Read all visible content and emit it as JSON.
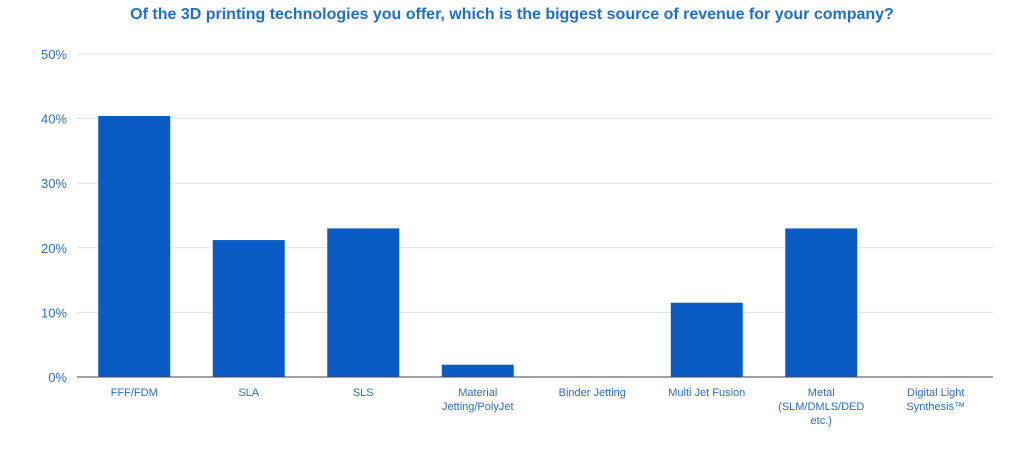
{
  "chart_data": {
    "type": "bar",
    "title": "Of the 3D printing technologies you offer, which is the biggest source of revenue for your company?",
    "xlabel": "",
    "ylabel": "",
    "categories": [
      "FFF/FDM",
      "SLA",
      "SLS",
      "Material Jetting/PolyJet",
      "Binder Jetting",
      "Multi Jet Fusion",
      "Metal (SLM/DMLS/DED etc.)",
      "Digital Light Synthesis™"
    ],
    "category_lines": [
      [
        "FFF/FDM"
      ],
      [
        "SLA"
      ],
      [
        "SLS"
      ],
      [
        "Material",
        "Jetting/PolyJet"
      ],
      [
        "Binder Jetting"
      ],
      [
        "Multi Jet Fusion"
      ],
      [
        "Metal",
        "(SLM/DMLS/DED",
        "etc.)"
      ],
      [
        "Digital Light",
        "Synthesis™"
      ]
    ],
    "values": [
      40.4,
      21.2,
      23.0,
      1.9,
      0,
      11.5,
      23.0,
      0
    ],
    "ylim": [
      0,
      50
    ],
    "yticks": [
      0,
      10,
      20,
      30,
      40,
      50
    ],
    "ytick_labels": [
      "0%",
      "10%",
      "20%",
      "30%",
      "40%",
      "50%"
    ],
    "grid": true,
    "legend": "none",
    "colors": {
      "bar": "#0a5cc4",
      "title": "#1c6fd1",
      "labels": "#2b6fc4",
      "grid": "#e0e0e0",
      "axis": "#444444"
    }
  }
}
